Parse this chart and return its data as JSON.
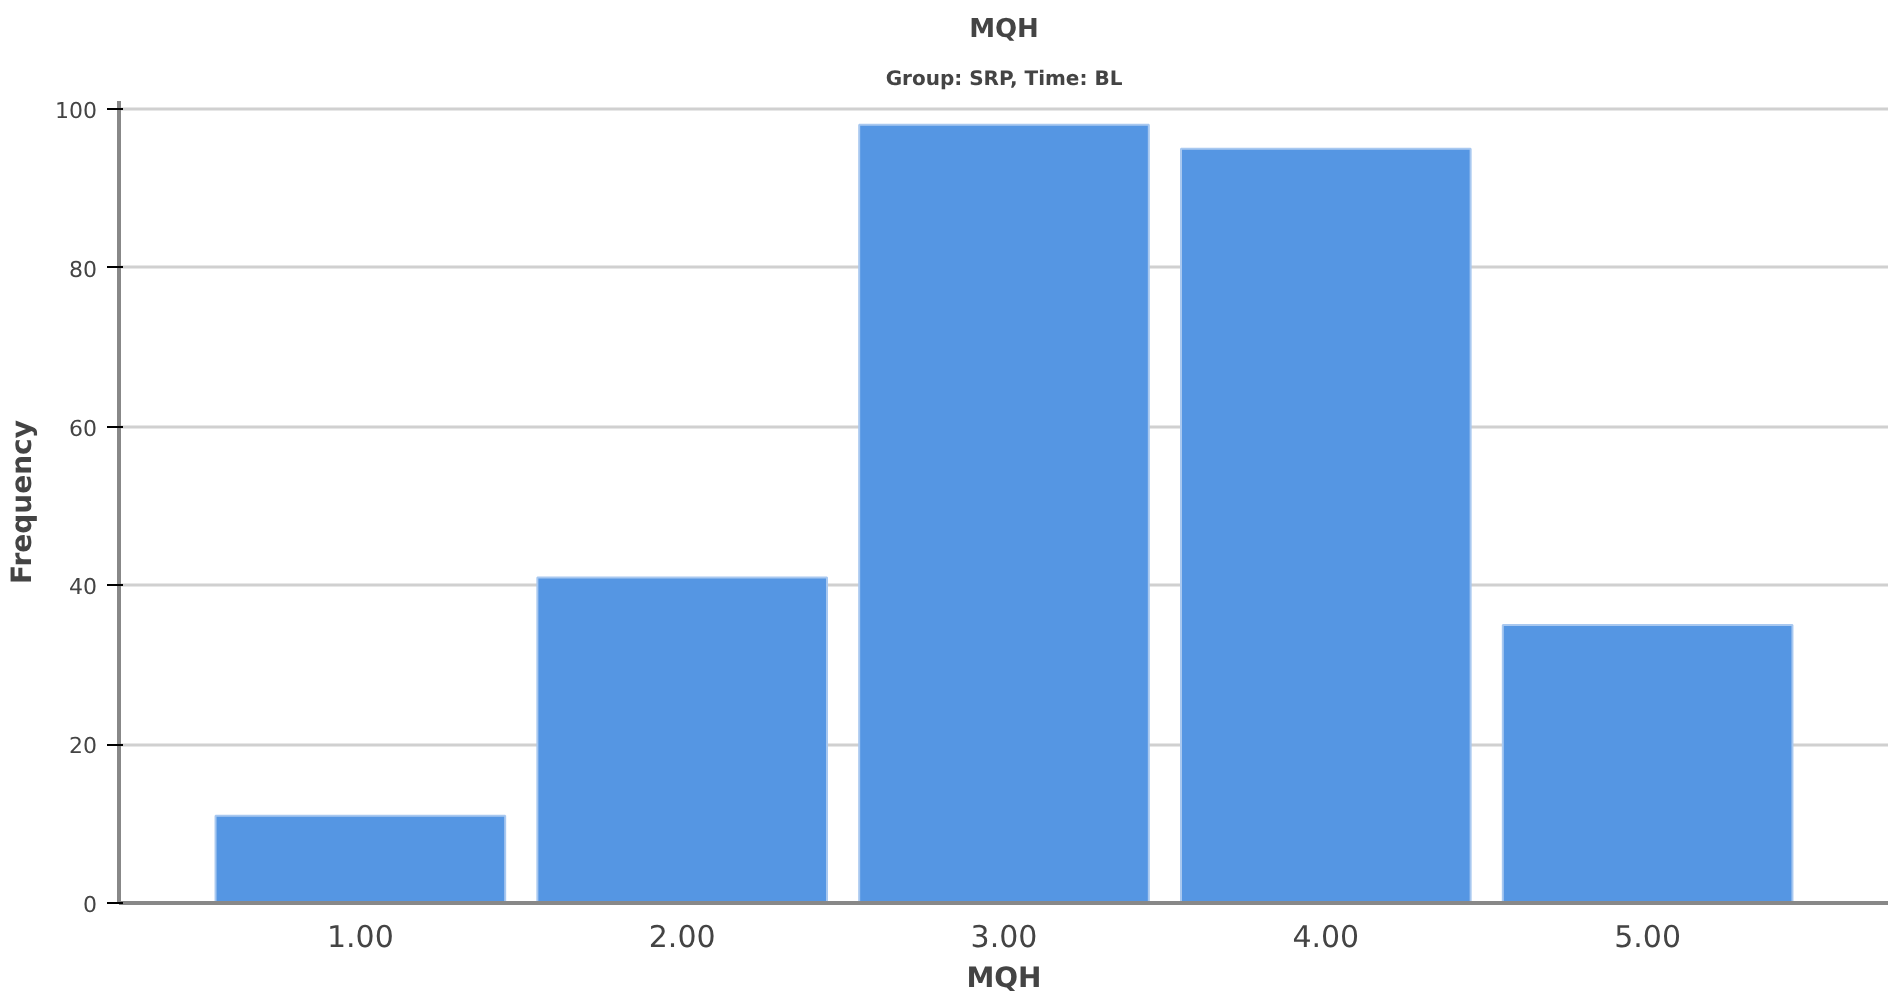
{
  "chart_data": {
    "type": "bar",
    "title": "MQH",
    "subtitle": "Group: SRP, Time: BL",
    "xlabel": "MQH",
    "ylabel": "Frequency",
    "categories": [
      "1.00",
      "2.00",
      "3.00",
      "4.00",
      "5.00"
    ],
    "values": [
      11,
      41,
      98,
      95,
      35
    ],
    "color": "#5596e3",
    "ylim": [
      0,
      101
    ],
    "yticks": [
      0,
      20,
      40,
      60,
      80,
      100
    ],
    "grid": "y"
  }
}
